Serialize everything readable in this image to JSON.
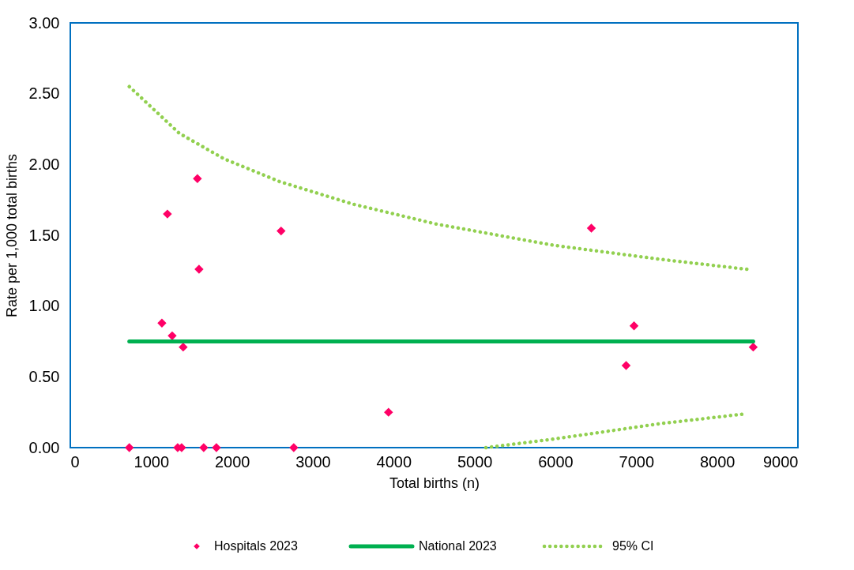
{
  "chart_data": {
    "type": "scatter",
    "xlabel": "Total births (n)",
    "ylabel": "Rate per 1,000 total births",
    "xlim": [
      0,
      9000
    ],
    "xticks": [
      0,
      1000,
      2000,
      3000,
      4000,
      5000,
      6000,
      7000,
      8000,
      9000
    ],
    "ylim": [
      0,
      3
    ],
    "yticks": [
      {
        "value": 0,
        "label": "0.00"
      },
      {
        "value": 0.5,
        "label": "0.50"
      },
      {
        "value": 1,
        "label": "1.00"
      },
      {
        "value": 1.5,
        "label": "1.50"
      },
      {
        "value": 2,
        "label": "2.00"
      },
      {
        "value": 2.5,
        "label": "2.50"
      },
      {
        "value": 3,
        "label": "3.00"
      }
    ],
    "grid": false,
    "legend": "bottom",
    "series": [
      {
        "name": "Hospitals 2023",
        "marker": "diamond",
        "color": "#ff0066",
        "x": [
          730,
          1133,
          1201,
          1260,
          1328,
          1377,
          1396,
          1572,
          1592,
          1650,
          1807,
          2607,
          2764,
          3936,
          6445,
          6875,
          6973,
          8447
        ],
        "values": [
          0,
          0.88,
          1.65,
          0.79,
          0,
          0,
          0.71,
          1.9,
          1.26,
          0,
          0,
          1.53,
          0,
          0.25,
          1.55,
          0.58,
          0.86,
          0.71
        ]
      },
      {
        "name": "National 2023",
        "type": "line",
        "line_style": "solid",
        "color": "#00b050",
        "x": [
          730,
          8447
        ],
        "values": [
          0.75,
          0.75
        ]
      },
      {
        "name": "95% CI",
        "type": "line",
        "line_style": "dotted",
        "color": "#92d050",
        "x": [
          730,
          1348,
          1901,
          2585,
          3496,
          4521,
          5970,
          7305,
          8368
        ],
        "values": [
          2.55,
          2.22,
          2.04,
          1.88,
          1.72,
          1.58,
          1.43,
          1.33,
          1.26
        ]
      },
      {
        "type": "line",
        "line_style": "dotted",
        "color": "#92d050",
        "x": [
          5140,
          5970,
          7305,
          8368
        ],
        "values": [
          0,
          0.06,
          0.17,
          0.24
        ]
      }
    ]
  }
}
